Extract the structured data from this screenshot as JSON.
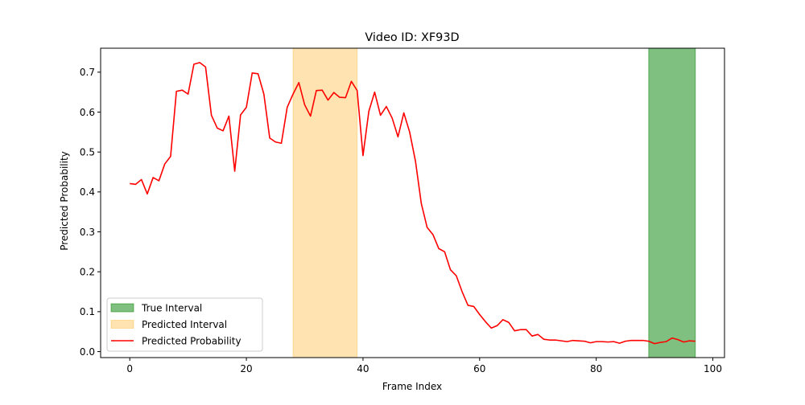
{
  "chart_data": {
    "type": "line",
    "title": "Video ID: XF93D",
    "xlabel": "Frame Index",
    "ylabel": "Predicted Probability",
    "xlim": [
      -5,
      102
    ],
    "ylim": [
      -0.015,
      0.76
    ],
    "xticks": [
      0,
      20,
      40,
      60,
      80,
      100
    ],
    "yticks": [
      0.0,
      0.1,
      0.2,
      0.3,
      0.4,
      0.5,
      0.6,
      0.7
    ],
    "grid": false,
    "legend_position": "lower-left",
    "legend": [
      {
        "label": "True Interval",
        "kind": "patch"
      },
      {
        "label": "Predicted Interval",
        "kind": "patch"
      },
      {
        "label": "Predicted Probability",
        "kind": "line"
      }
    ],
    "true_interval": {
      "label": "True Interval",
      "start": 89,
      "end": 97,
      "color": "#008000",
      "opacity": 0.5
    },
    "predicted_interval": {
      "label": "Predicted Interval",
      "start": 28,
      "end": 39,
      "color": "#FFA500",
      "opacity": 0.3
    },
    "series": [
      {
        "name": "Predicted Probability",
        "color": "#FF0000",
        "x": [
          0,
          1,
          2,
          3,
          4,
          5,
          6,
          7,
          8,
          9,
          10,
          11,
          12,
          13,
          14,
          15,
          16,
          17,
          18,
          19,
          20,
          21,
          22,
          23,
          24,
          25,
          26,
          27,
          28,
          29,
          30,
          31,
          32,
          33,
          34,
          35,
          36,
          37,
          38,
          39,
          40,
          41,
          42,
          43,
          44,
          45,
          46,
          47,
          48,
          49,
          50,
          51,
          52,
          53,
          54,
          55,
          56,
          57,
          58,
          59,
          60,
          61,
          62,
          63,
          64,
          65,
          66,
          67,
          68,
          69,
          70,
          71,
          72,
          73,
          74,
          75,
          76,
          77,
          78,
          79,
          80,
          81,
          82,
          83,
          84,
          85,
          86,
          87,
          88,
          89,
          90,
          91,
          92,
          93,
          94,
          95,
          96,
          97
        ],
        "values": [
          0.421,
          0.419,
          0.431,
          0.395,
          0.436,
          0.428,
          0.47,
          0.489,
          0.652,
          0.655,
          0.645,
          0.72,
          0.724,
          0.713,
          0.592,
          0.56,
          0.553,
          0.59,
          0.452,
          0.593,
          0.612,
          0.698,
          0.696,
          0.645,
          0.535,
          0.525,
          0.522,
          0.612,
          0.645,
          0.674,
          0.618,
          0.59,
          0.654,
          0.655,
          0.63,
          0.649,
          0.637,
          0.636,
          0.677,
          0.654,
          0.491,
          0.602,
          0.65,
          0.592,
          0.614,
          0.585,
          0.538,
          0.598,
          0.55,
          0.477,
          0.371,
          0.311,
          0.293,
          0.258,
          0.25,
          0.205,
          0.19,
          0.15,
          0.116,
          0.113,
          0.093,
          0.075,
          0.059,
          0.065,
          0.08,
          0.073,
          0.052,
          0.055,
          0.055,
          0.039,
          0.043,
          0.031,
          0.029,
          0.029,
          0.027,
          0.025,
          0.028,
          0.027,
          0.026,
          0.022,
          0.025,
          0.025,
          0.024,
          0.025,
          0.021,
          0.026,
          0.028,
          0.028,
          0.028,
          0.026,
          0.02,
          0.023,
          0.025,
          0.034,
          0.03,
          0.024,
          0.027,
          0.026
        ]
      }
    ]
  }
}
